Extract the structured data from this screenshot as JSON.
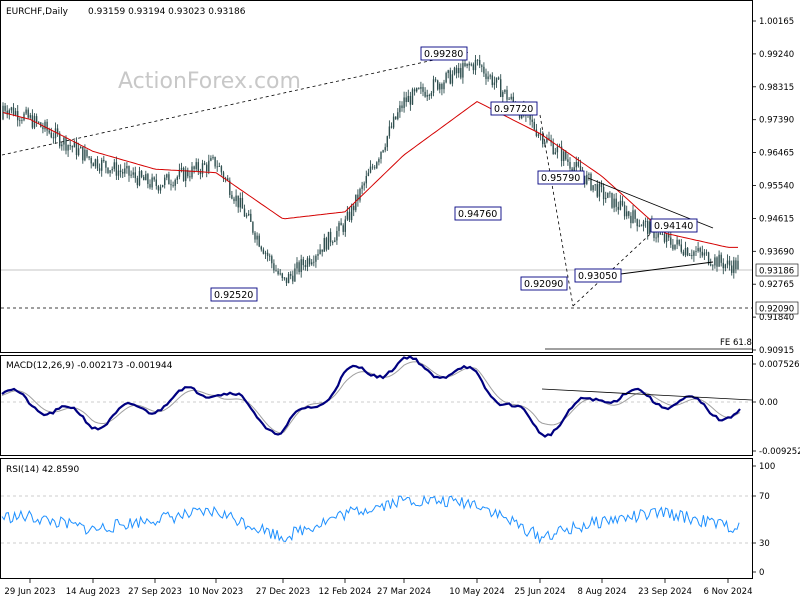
{
  "watermark": "ActionForex.com",
  "price_panel": {
    "symbol_label": "EURCHF,Daily",
    "ohlc_label": "0.93159 0.93194 0.93023 0.93186",
    "y_ticks": [
      "1.00165",
      "0.99240",
      "0.98315",
      "0.97390",
      "0.96465",
      "0.95540",
      "0.94615",
      "0.93690",
      "0.92765",
      "0.91840",
      "0.90915"
    ],
    "current_price_tag": "0.93186",
    "support_tag": "0.92090",
    "fe_label": "FE 61.8",
    "annotations": [
      "0.99280",
      "0.97720",
      "0.95790",
      "0.94760",
      "0.94140",
      "0.93050",
      "0.92520",
      "0.92090"
    ]
  },
  "macd_panel": {
    "label": "MACD(12,26,9) -0.002173 -0.001944",
    "y_ticks": [
      "0.007526",
      "0.00",
      "-0.009252"
    ]
  },
  "rsi_panel": {
    "label": "RSI(14) 42.8590",
    "y_ticks": [
      "100",
      "70",
      "30",
      "0"
    ]
  },
  "x_axis": {
    "labels": [
      "29 Jun 2023",
      "14 Aug 2023",
      "27 Sep 2023",
      "10 Nov 2023",
      "27 Dec 2023",
      "12 Feb 2024",
      "27 Mar 2024",
      "10 May 2024",
      "25 Jun 2024",
      "8 Aug 2024",
      "23 Sep 2024",
      "6 Nov 2024"
    ]
  },
  "colors": {
    "candles": "#2f4f4f",
    "sma": "#d40000",
    "macd_line": "#000080",
    "macd_signal": "#a0a0a0",
    "rsi_line": "#1e90ff"
  },
  "chart_data": [
    {
      "type": "line",
      "title": "EURCHF,Daily",
      "x": [
        "29 Jun 2023",
        "14 Aug 2023",
        "27 Sep 2023",
        "10 Nov 2023",
        "27 Dec 2023",
        "12 Feb 2024",
        "27 Mar 2024",
        "10 May 2024",
        "25 Jun 2024",
        "8 Aug 2024",
        "23 Sep 2024",
        "6 Nov 2024"
      ],
      "series": [
        {
          "name": "Close (approx.)",
          "values": [
            0.974,
            0.9625,
            0.9555,
            0.962,
            0.928,
            0.9445,
            0.979,
            0.99,
            0.97,
            0.953,
            0.94,
            0.933
          ]
        },
        {
          "name": "SMA (approx.)",
          "values": [
            0.974,
            0.965,
            0.96,
            0.959,
            0.946,
            0.948,
            0.964,
            0.979,
            0.97,
            0.958,
            0.942,
            0.938
          ]
        }
      ],
      "ylim": [
        0.9065,
        1.004
      ]
    },
    {
      "type": "line",
      "title": "MACD(12,26,9) -0.002173 -0.001944",
      "x": [
        "29 Jun 2023",
        "14 Aug 2023",
        "27 Sep 2023",
        "10 Nov 2023",
        "27 Dec 2023",
        "12 Feb 2024",
        "27 Mar 2024",
        "10 May 2024",
        "25 Jun 2024",
        "8 Aug 2024",
        "23 Sep 2024",
        "6 Nov 2024"
      ],
      "series": [
        {
          "name": "MACD",
          "values": [
            0.0,
            -0.004,
            -0.0005,
            0.003,
            -0.006,
            0.005,
            0.0075,
            0.005,
            -0.006,
            0.0015,
            0.0005,
            -0.0022
          ]
        },
        {
          "name": "Signal",
          "values": [
            0.0005,
            -0.0035,
            -0.001,
            0.0025,
            -0.0055,
            0.004,
            0.007,
            0.0055,
            -0.0045,
            0.0005,
            0.0008,
            -0.0019
          ]
        }
      ],
      "ylim": [
        -0.0105,
        0.0085
      ]
    },
    {
      "type": "line",
      "title": "RSI(14) 42.8590",
      "x": [
        "29 Jun 2023",
        "14 Aug 2023",
        "27 Sep 2023",
        "10 Nov 2023",
        "27 Dec 2023",
        "12 Feb 2024",
        "27 Mar 2024",
        "10 May 2024",
        "25 Jun 2024",
        "8 Aug 2024",
        "23 Sep 2024",
        "6 Nov 2024"
      ],
      "series": [
        {
          "name": "RSI",
          "values": [
            52,
            40,
            50,
            57,
            33,
            55,
            68,
            65,
            33,
            48,
            56,
            42.86
          ]
        }
      ],
      "ylim": [
        0,
        100
      ]
    }
  ]
}
